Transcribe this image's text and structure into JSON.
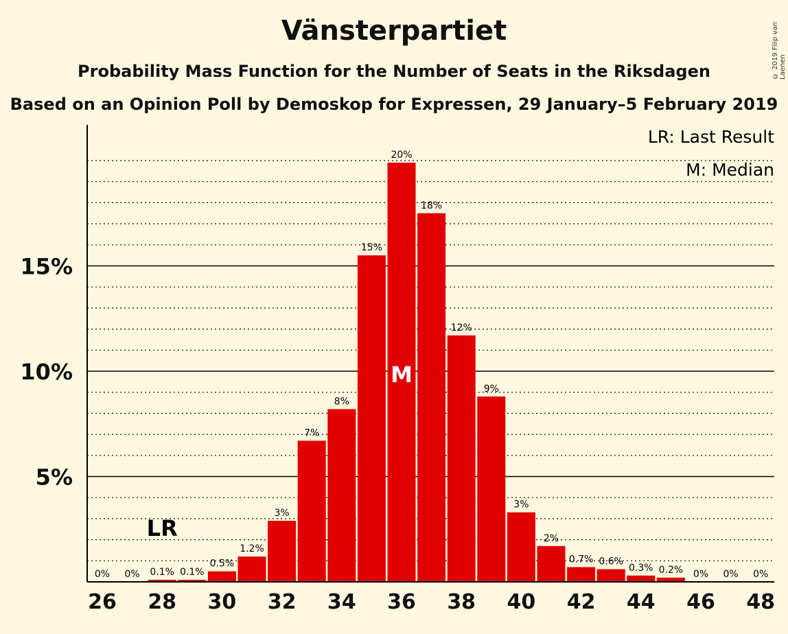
{
  "header": {
    "title": "Vänsterpartiet",
    "subtitle": "Probability Mass Function for the Number of Seats in the Riksdagen",
    "subtitle2": "Based on an Opinion Poll by Demoskop for Expressen, 29 January–5 February 2019",
    "copyright": "© 2019 Filip van Laenen"
  },
  "legend": {
    "last_result": "LR: Last Result",
    "median": "M: Median"
  },
  "chart_data": {
    "type": "bar",
    "categories": [
      26,
      27,
      28,
      29,
      30,
      31,
      32,
      33,
      34,
      35,
      36,
      37,
      38,
      39,
      40,
      41,
      42,
      43,
      44,
      45,
      46,
      47,
      48
    ],
    "values": [
      0,
      0,
      0.1,
      0.1,
      0.5,
      1.2,
      2.9,
      6.7,
      8.2,
      15.5,
      19.9,
      17.5,
      11.7,
      8.8,
      3.3,
      1.7,
      0.7,
      0.6,
      0.3,
      0.2,
      0,
      0,
      0
    ],
    "data_labels": [
      "0%",
      "0%",
      "0.1%",
      "0.1%",
      "0.5%",
      "1.2%",
      "3%",
      "7%",
      "8%",
      "15%",
      "20%",
      "18%",
      "12%",
      "9%",
      "3%",
      "2%",
      "0.7%",
      "0.6%",
      "0.3%",
      "0.2%",
      "0%",
      "0%",
      "0%"
    ],
    "x_ticks": [
      26,
      28,
      30,
      32,
      34,
      36,
      38,
      40,
      42,
      44,
      46,
      48
    ],
    "y_ticks": [
      {
        "value": 5,
        "label": "5%"
      },
      {
        "value": 10,
        "label": "10%"
      },
      {
        "value": 15,
        "label": "15%"
      }
    ],
    "ylim": [
      0,
      21.7
    ],
    "minor_grid_step": 1,
    "last_result": {
      "x": 28,
      "label": "LR"
    },
    "median": {
      "x": 36,
      "label": "M"
    },
    "bar_color": "#e00000",
    "legend_position": "top-right"
  }
}
